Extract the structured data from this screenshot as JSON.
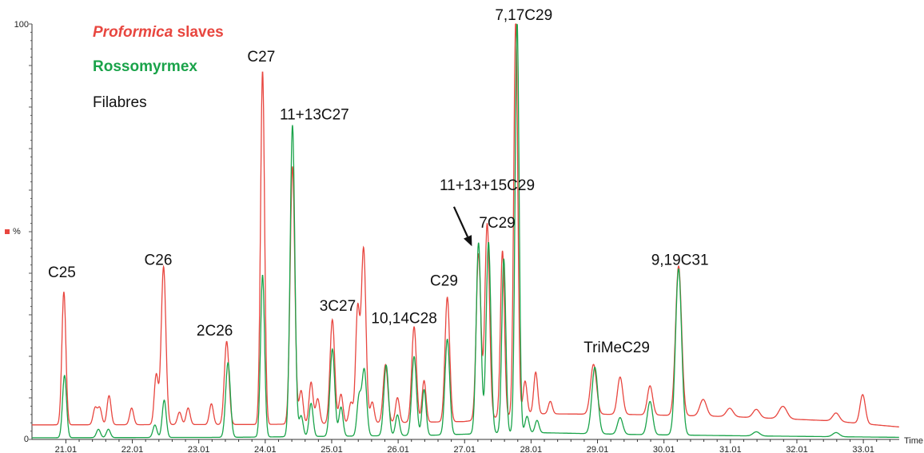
{
  "chart_data": {
    "type": "line",
    "title": "",
    "xlabel": "Time",
    "ylabel": "%",
    "xlim": [
      20.5,
      33.55
    ],
    "ylim": [
      0,
      100
    ],
    "y_ticks": [
      "0",
      "100"
    ],
    "x_ticks": [
      "21.01",
      "22.01",
      "23.01",
      "24.01",
      "25.01",
      "26.01",
      "27.01",
      "28.01",
      "29.01",
      "30.01",
      "31.01",
      "32.01",
      "33.01"
    ],
    "x_tick_values": [
      21.01,
      22.01,
      23.01,
      24.01,
      25.01,
      26.01,
      27.01,
      28.01,
      29.01,
      30.01,
      31.01,
      32.01,
      33.01
    ],
    "legend": {
      "position": "top-left",
      "entries": [
        {
          "name_italic": "Proformica",
          "name_rest": " slaves",
          "color": "#e8463f"
        },
        {
          "name_italic": "",
          "name_rest": "Rossomyrmex",
          "color": "#1aa34a"
        },
        {
          "name_italic": "",
          "name_rest": "Filabres",
          "color": "#111111"
        }
      ]
    },
    "series": [
      {
        "name": "Proformica slaves",
        "color": "#e8463f",
        "baseline": [
          [
            20.5,
            3.5
          ],
          [
            24.0,
            3.6
          ],
          [
            27.0,
            4.3
          ],
          [
            28.0,
            6.2
          ],
          [
            29.5,
            6.0
          ],
          [
            31.0,
            5.5
          ],
          [
            32.5,
            4.5
          ],
          [
            33.55,
            3.0
          ]
        ],
        "peaks": [
          [
            20.98,
            32,
            0.03
          ],
          [
            21.45,
            4,
            0.03
          ],
          [
            21.52,
            4,
            0.03
          ],
          [
            21.66,
            7,
            0.03
          ],
          [
            22.0,
            4,
            0.03
          ],
          [
            22.37,
            12,
            0.03
          ],
          [
            22.48,
            38,
            0.035
          ],
          [
            22.72,
            3,
            0.03
          ],
          [
            22.85,
            4,
            0.03
          ],
          [
            23.2,
            5,
            0.03
          ],
          [
            23.43,
            20,
            0.035
          ],
          [
            23.97,
            85,
            0.03
          ],
          [
            24.42,
            62,
            0.035
          ],
          [
            24.55,
            8,
            0.03
          ],
          [
            24.7,
            10,
            0.03
          ],
          [
            24.8,
            6,
            0.03
          ],
          [
            25.02,
            25,
            0.035
          ],
          [
            25.15,
            7,
            0.03
          ],
          [
            25.3,
            5,
            0.03
          ],
          [
            25.4,
            27,
            0.03
          ],
          [
            25.49,
            42,
            0.035
          ],
          [
            25.62,
            5,
            0.03
          ],
          [
            25.82,
            14,
            0.035
          ],
          [
            26.0,
            6,
            0.03
          ],
          [
            26.25,
            23,
            0.035
          ],
          [
            26.4,
            10,
            0.03
          ],
          [
            26.75,
            30,
            0.035
          ],
          [
            27.22,
            40,
            0.035
          ],
          [
            27.35,
            47,
            0.035
          ],
          [
            27.58,
            40,
            0.03
          ],
          [
            27.78,
            95,
            0.03
          ],
          [
            27.92,
            8,
            0.03
          ],
          [
            28.08,
            10,
            0.03
          ],
          [
            28.3,
            3,
            0.03
          ],
          [
            28.95,
            12,
            0.045
          ],
          [
            29.35,
            9,
            0.04
          ],
          [
            29.8,
            7,
            0.04
          ],
          [
            30.23,
            36,
            0.045
          ],
          [
            30.6,
            4,
            0.05
          ],
          [
            31.0,
            2,
            0.05
          ],
          [
            31.4,
            2,
            0.05
          ],
          [
            31.8,
            3,
            0.06
          ],
          [
            32.6,
            2,
            0.05
          ],
          [
            33.0,
            7,
            0.04
          ]
        ]
      },
      {
        "name": "Rossomyrmex",
        "color": "#1aa34a",
        "baseline": [
          [
            20.5,
            0.4
          ],
          [
            23.5,
            0.5
          ],
          [
            26.5,
            1.0
          ],
          [
            27.5,
            1.5
          ],
          [
            28.2,
            1.6
          ],
          [
            29.5,
            1.2
          ],
          [
            31.0,
            0.9
          ],
          [
            33.55,
            0.5
          ]
        ],
        "peaks": [
          [
            20.99,
            15,
            0.03
          ],
          [
            21.5,
            2,
            0.03
          ],
          [
            21.65,
            2,
            0.03
          ],
          [
            22.35,
            3,
            0.03
          ],
          [
            22.49,
            9,
            0.03
          ],
          [
            23.45,
            18,
            0.035
          ],
          [
            23.97,
            39,
            0.03
          ],
          [
            24.42,
            75,
            0.035
          ],
          [
            24.55,
            5,
            0.03
          ],
          [
            24.7,
            8,
            0.03
          ],
          [
            25.02,
            21,
            0.035
          ],
          [
            25.15,
            7,
            0.03
          ],
          [
            25.42,
            9,
            0.03
          ],
          [
            25.5,
            16,
            0.035
          ],
          [
            25.83,
            17,
            0.035
          ],
          [
            26.0,
            5,
            0.03
          ],
          [
            26.25,
            19,
            0.035
          ],
          [
            26.4,
            11,
            0.03
          ],
          [
            26.75,
            23,
            0.035
          ],
          [
            27.22,
            46,
            0.035
          ],
          [
            27.37,
            46,
            0.035
          ],
          [
            27.6,
            42,
            0.03
          ],
          [
            27.8,
            99,
            0.03
          ],
          [
            27.95,
            4,
            0.03
          ],
          [
            28.1,
            3,
            0.03
          ],
          [
            28.97,
            16,
            0.045
          ],
          [
            29.35,
            4,
            0.04
          ],
          [
            29.8,
            8,
            0.04
          ],
          [
            30.23,
            40,
            0.045
          ],
          [
            31.4,
            1,
            0.05
          ],
          [
            32.6,
            1,
            0.05
          ]
        ]
      }
    ],
    "annotations": [
      {
        "text": "C25",
        "x": 20.95,
        "y": 39
      },
      {
        "text": "C26",
        "x": 22.4,
        "y": 42
      },
      {
        "text": "2C26",
        "x": 23.25,
        "y": 25
      },
      {
        "text": "C27",
        "x": 23.95,
        "y": 91
      },
      {
        "text": "11+13C27",
        "x": 24.75,
        "y": 77
      },
      {
        "text": "3C27",
        "x": 25.1,
        "y": 31
      },
      {
        "text": "10,14C28",
        "x": 26.1,
        "y": 28
      },
      {
        "text": "C29",
        "x": 26.7,
        "y": 37
      },
      {
        "text": "11+13+15C29",
        "x": 27.35,
        "y": 60
      },
      {
        "text": "7C29",
        "x": 27.5,
        "y": 51
      },
      {
        "text": "7,17C29",
        "x": 27.9,
        "y": 101
      },
      {
        "text": "TriMeC29",
        "x": 29.3,
        "y": 21
      },
      {
        "text": "9,19C31",
        "x": 30.25,
        "y": 42
      }
    ],
    "arrow": {
      "from": [
        26.85,
        56
      ],
      "to": [
        27.12,
        46.5
      ]
    }
  }
}
